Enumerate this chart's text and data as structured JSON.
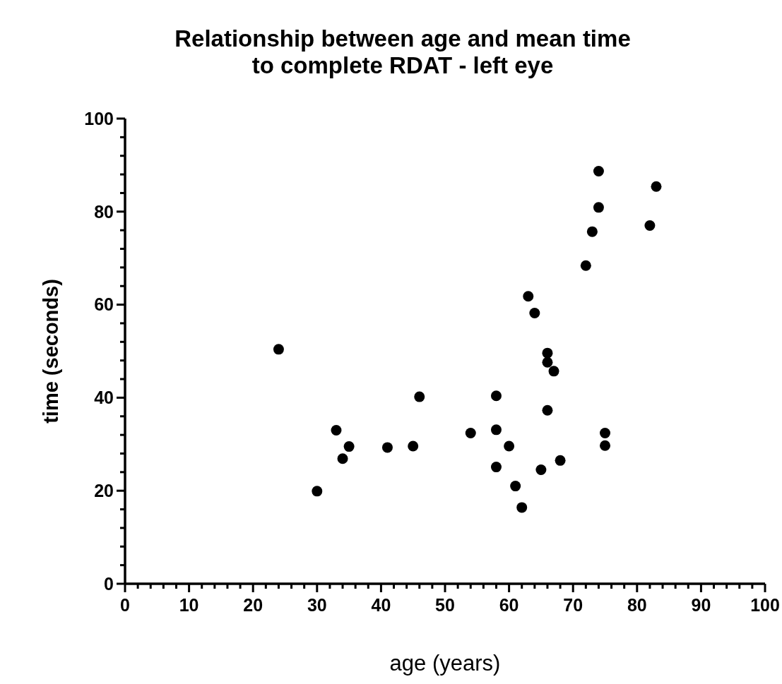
{
  "chart_data": {
    "type": "scatter",
    "title": "Relationship between age and mean time\nto complete RDAT - left eye",
    "xlabel": "age (years)",
    "ylabel": "time (seconds)",
    "x": [
      24,
      30,
      33,
      34,
      35,
      41,
      45,
      46,
      54,
      58,
      58,
      58,
      60,
      61,
      62,
      63,
      64,
      65,
      66,
      66,
      67,
      66,
      68,
      72,
      73,
      74,
      74,
      75,
      75,
      82,
      83
    ],
    "values": [
      50.4,
      19.9,
      33.0,
      26.9,
      29.5,
      29.3,
      29.6,
      40.2,
      32.4,
      40.4,
      33.1,
      25.1,
      29.6,
      21.0,
      16.4,
      61.8,
      58.2,
      24.5,
      49.6,
      47.6,
      45.7,
      37.3,
      26.5,
      68.4,
      75.7,
      80.9,
      88.7,
      32.4,
      29.7,
      77.0,
      85.4
    ],
    "color": "#000000",
    "marker": "circle",
    "xlim": [
      0,
      100
    ],
    "ylim": [
      0,
      100
    ],
    "xticks": [
      0,
      {
        "value": 2,
        "label": null
      },
      {
        "value": 4,
        "label": null
      },
      {
        "value": 6,
        "label": null
      },
      {
        "value": 8,
        "label": null
      },
      10,
      {
        "value": 12,
        "label": null
      },
      {
        "value": 14,
        "label": null
      },
      {
        "value": 16,
        "label": null
      },
      {
        "value": 18,
        "label": null
      },
      20,
      {
        "value": 22,
        "label": null
      },
      {
        "value": 24,
        "label": null
      },
      {
        "value": 26,
        "label": null
      },
      {
        "value": 28,
        "label": null
      },
      30,
      {
        "value": 32,
        "label": null
      },
      {
        "value": 34,
        "label": null
      },
      {
        "value": 36,
        "label": null
      },
      {
        "value": 38,
        "label": null
      },
      40,
      {
        "value": 42,
        "label": null
      },
      {
        "value": 44,
        "label": null
      },
      {
        "value": 46,
        "label": null
      },
      {
        "value": 48,
        "label": null
      },
      50,
      {
        "value": 52,
        "label": null
      },
      {
        "value": 54,
        "label": null
      },
      {
        "value": 56,
        "label": null
      },
      {
        "value": 58,
        "label": null
      },
      60,
      {
        "value": 62,
        "label": null
      },
      {
        "value": 64,
        "label": null
      },
      {
        "value": 66,
        "label": null
      },
      {
        "value": 68,
        "label": null
      },
      70,
      {
        "value": 72,
        "label": null
      },
      {
        "value": 74,
        "label": null
      },
      {
        "value": 76,
        "label": null
      },
      {
        "value": 78,
        "label": null
      },
      80,
      {
        "value": 82,
        "label": null
      },
      {
        "value": 84,
        "label": null
      },
      {
        "value": 86,
        "label": null
      },
      {
        "value": 88,
        "label": null
      },
      90,
      {
        "value": 92,
        "label": null
      },
      {
        "value": 94,
        "label": null
      },
      {
        "value": 96,
        "label": null
      },
      {
        "value": 98,
        "label": null
      },
      100
    ],
    "yticks": [
      0,
      {
        "value": 4,
        "label": null
      },
      {
        "value": 8,
        "label": null
      },
      {
        "value": 12,
        "label": null
      },
      {
        "value": 16,
        "label": null
      },
      20,
      {
        "value": 24,
        "label": null
      },
      {
        "value": 28,
        "label": null
      },
      {
        "value": 32,
        "label": null
      },
      {
        "value": 36,
        "label": null
      },
      40,
      {
        "value": 44,
        "label": null
      },
      {
        "value": 48,
        "label": null
      },
      {
        "value": 52,
        "label": null
      },
      {
        "value": 56,
        "label": null
      },
      60,
      {
        "value": 64,
        "label": null
      },
      {
        "value": 68,
        "label": null
      },
      {
        "value": 72,
        "label": null
      },
      {
        "value": 76,
        "label": null
      },
      80,
      {
        "value": 84,
        "label": null
      },
      {
        "value": 88,
        "label": null
      },
      {
        "value": 92,
        "label": null
      },
      {
        "value": 96,
        "label": null
      },
      100
    ],
    "grid": false
  }
}
